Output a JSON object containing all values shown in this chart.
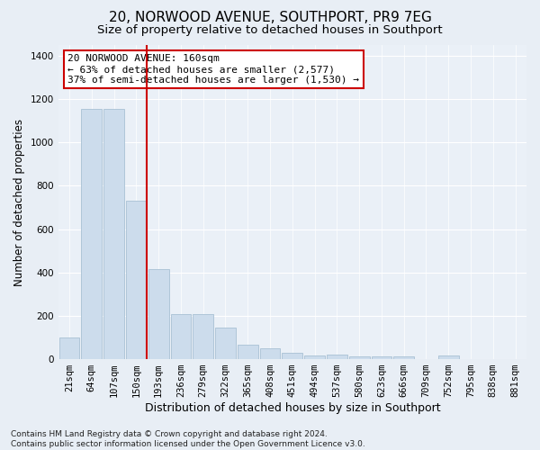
{
  "title": "20, NORWOOD AVENUE, SOUTHPORT, PR9 7EG",
  "subtitle": "Size of property relative to detached houses in Southport",
  "xlabel": "Distribution of detached houses by size in Southport",
  "ylabel": "Number of detached properties",
  "categories": [
    "21sqm",
    "64sqm",
    "107sqm",
    "150sqm",
    "193sqm",
    "236sqm",
    "279sqm",
    "322sqm",
    "365sqm",
    "408sqm",
    "451sqm",
    "494sqm",
    "537sqm",
    "580sqm",
    "623sqm",
    "666sqm",
    "709sqm",
    "752sqm",
    "795sqm",
    "838sqm",
    "881sqm"
  ],
  "values": [
    100,
    1155,
    1155,
    730,
    415,
    210,
    210,
    145,
    68,
    50,
    28,
    18,
    20,
    14,
    13,
    12,
    0,
    15,
    0,
    0,
    0
  ],
  "bar_color": "#ccdcec",
  "bar_edge_color": "#a8c0d4",
  "vline_color": "#cc0000",
  "annotation_text": "20 NORWOOD AVENUE: 160sqm\n← 63% of detached houses are smaller (2,577)\n37% of semi-detached houses are larger (1,530) →",
  "annotation_box_color": "#ffffff",
  "annotation_box_edge_color": "#cc0000",
  "ylim": [
    0,
    1450
  ],
  "yticks": [
    0,
    200,
    400,
    600,
    800,
    1000,
    1200,
    1400
  ],
  "bg_color": "#e8eef5",
  "plot_bg_color": "#eaf0f7",
  "grid_color": "#ffffff",
  "footer": "Contains HM Land Registry data © Crown copyright and database right 2024.\nContains public sector information licensed under the Open Government Licence v3.0.",
  "title_fontsize": 11,
  "subtitle_fontsize": 9.5,
  "xlabel_fontsize": 9,
  "ylabel_fontsize": 8.5,
  "tick_fontsize": 7.5,
  "annotation_fontsize": 8,
  "footer_fontsize": 6.5
}
